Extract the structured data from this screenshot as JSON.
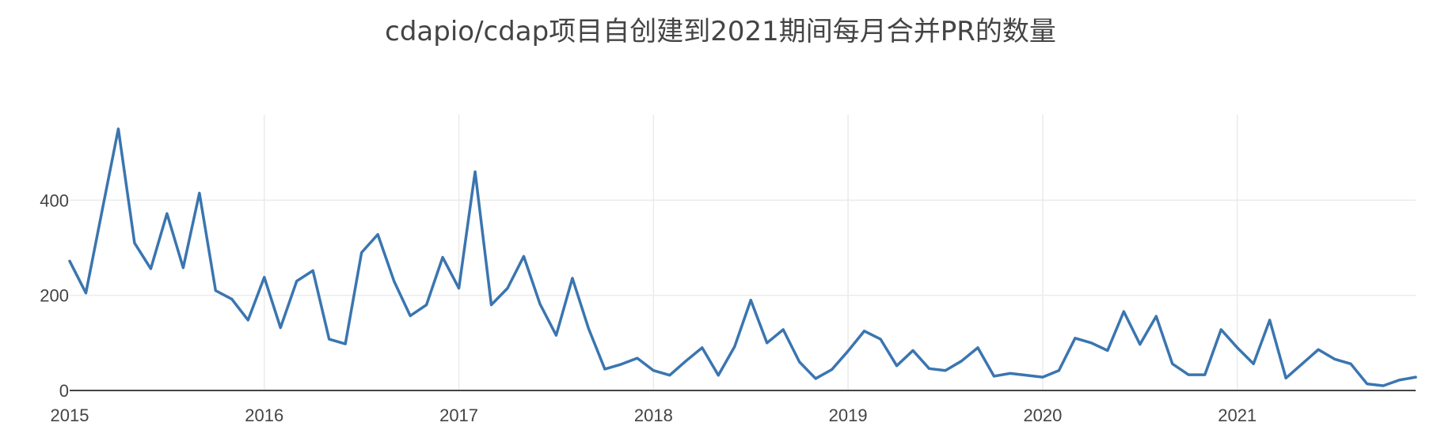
{
  "chart_data": {
    "type": "line",
    "title": "cdapio/cdap项目自创建到2021期间每月合并PR的数量",
    "xlabel": "",
    "ylabel": "",
    "x_tick_labels": [
      "2015",
      "2016",
      "2017",
      "2018",
      "2019",
      "2020",
      "2021"
    ],
    "y_tick_labels": [
      "0",
      "200",
      "400"
    ],
    "y_ticks": [
      0,
      200,
      400
    ],
    "xlim": [
      "2015-01",
      "2021-12"
    ],
    "ylim": [
      0,
      580
    ],
    "grid": true,
    "line_color": "#3a75b0",
    "series": [
      {
        "x": [
          "2015-01",
          "2015-02",
          "2015-03",
          "2015-04",
          "2015-05",
          "2015-06",
          "2015-07",
          "2015-08",
          "2015-09",
          "2015-10",
          "2015-11",
          "2015-12",
          "2016-01",
          "2016-02",
          "2016-03",
          "2016-04",
          "2016-05",
          "2016-06",
          "2016-07",
          "2016-08",
          "2016-09",
          "2016-10",
          "2016-11",
          "2016-12",
          "2017-01",
          "2017-02",
          "2017-03",
          "2017-04",
          "2017-05",
          "2017-06",
          "2017-07",
          "2017-08",
          "2017-09",
          "2017-10",
          "2017-11",
          "2017-12",
          "2018-01",
          "2018-02",
          "2018-03",
          "2018-04",
          "2018-05",
          "2018-06",
          "2018-07",
          "2018-08",
          "2018-09",
          "2018-10",
          "2018-11",
          "2018-12",
          "2019-01",
          "2019-02",
          "2019-03",
          "2019-04",
          "2019-05",
          "2019-06",
          "2019-07",
          "2019-08",
          "2019-09",
          "2019-10",
          "2019-11",
          "2019-12",
          "2020-01",
          "2020-02",
          "2020-03",
          "2020-04",
          "2020-05",
          "2020-06",
          "2020-07",
          "2020-08",
          "2020-09",
          "2020-10",
          "2020-11",
          "2020-12",
          "2021-01",
          "2021-02",
          "2021-03",
          "2021-04",
          "2021-05",
          "2021-06",
          "2021-07",
          "2021-08",
          "2021-09",
          "2021-10",
          "2021-11",
          "2021-12"
        ],
        "values": [
          272,
          205,
          378,
          550,
          310,
          256,
          372,
          258,
          415,
          210,
          192,
          148,
          238,
          132,
          230,
          252,
          108,
          98,
          290,
          328,
          230,
          157,
          180,
          280,
          215,
          460,
          180,
          215,
          282,
          182,
          116,
          236,
          130,
          45,
          55,
          68,
          42,
          32,
          62,
          90,
          32,
          92,
          190,
          100,
          128,
          60,
          25,
          44,
          83,
          125,
          108,
          52,
          84,
          46,
          42,
          62,
          90,
          30,
          36,
          32,
          28,
          42,
          110,
          100,
          84,
          166,
          97,
          156,
          56,
          33,
          33,
          128,
          90,
          56,
          148,
          26,
          56,
          86,
          66,
          56,
          14,
          10,
          22,
          28
        ]
      }
    ]
  }
}
